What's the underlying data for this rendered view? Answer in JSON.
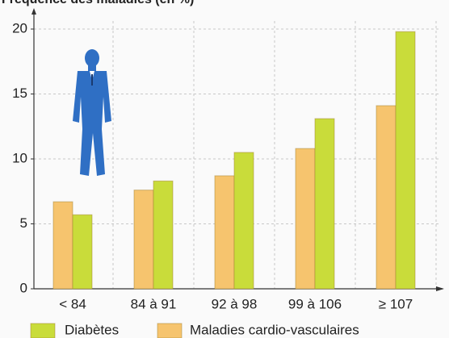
{
  "chart_data": {
    "type": "bar",
    "title": "Fréquence des maladies (en %)",
    "categories": [
      "< 84",
      "84 à 91",
      "92 à 98",
      "99 à 106",
      "≥ 107"
    ],
    "series": [
      {
        "name": "Maladies cardio-vasculaires",
        "color": "#f6c46e",
        "values": [
          6.7,
          7.6,
          8.7,
          10.8,
          14.1
        ]
      },
      {
        "name": "Diabètes",
        "color": "#c9dc3a",
        "values": [
          5.7,
          8.3,
          10.5,
          13.1,
          19.8
        ]
      }
    ],
    "ylim": [
      0,
      20
    ],
    "yticks": [
      0,
      5,
      10,
      15,
      20
    ],
    "grid": true
  }
}
